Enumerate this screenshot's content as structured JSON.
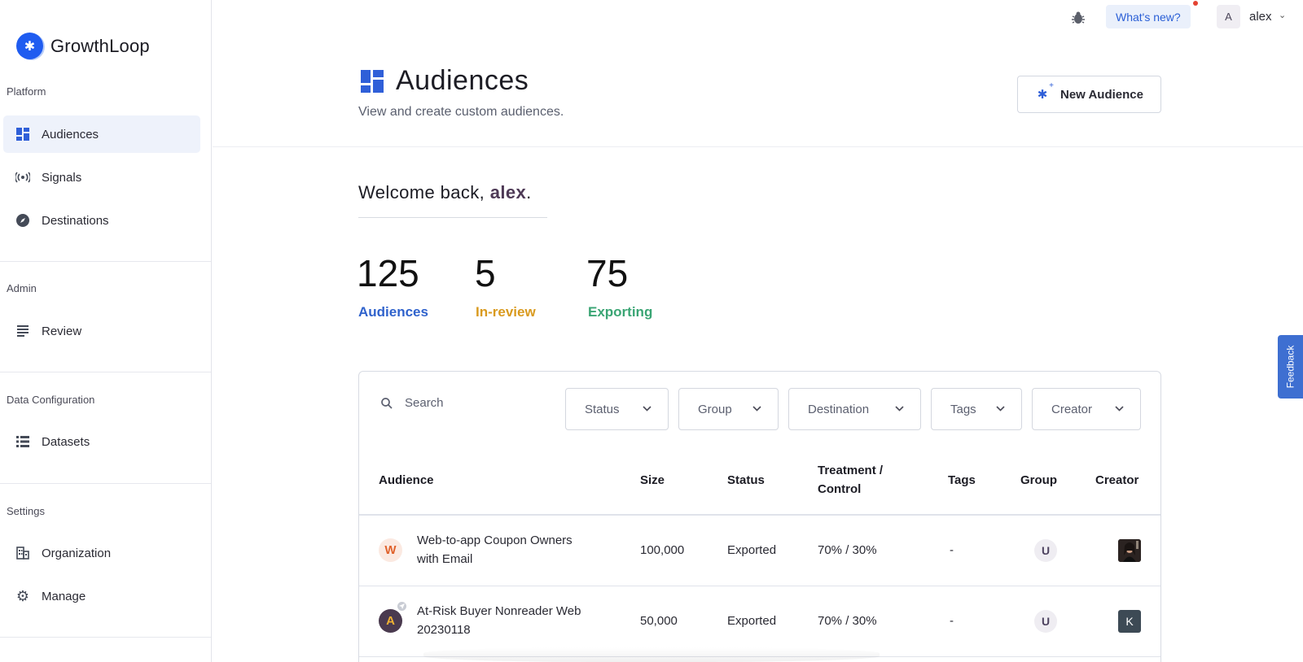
{
  "app": {
    "name": "GrowthLoop"
  },
  "sidebar": {
    "sections": [
      {
        "label": "Platform"
      },
      {
        "label": "Admin"
      },
      {
        "label": "Data Configuration"
      },
      {
        "label": "Settings"
      }
    ],
    "items": [
      {
        "label": "Audiences",
        "icon": "dashboard-icon",
        "active": true
      },
      {
        "label": "Signals",
        "icon": "broadcast-icon"
      },
      {
        "label": "Destinations",
        "icon": "compass-icon"
      },
      {
        "label": "Review",
        "icon": "list-icon"
      },
      {
        "label": "Datasets",
        "icon": "table-list-icon"
      },
      {
        "label": "Organization",
        "icon": "building-icon"
      },
      {
        "label": "Manage",
        "icon": "gear-icon"
      }
    ]
  },
  "topbar": {
    "whats_new": "What's new?",
    "user_initial": "A",
    "user_name": "alex"
  },
  "header": {
    "title": "Audiences",
    "subtitle": "View and create custom audiences.",
    "new_button": "New Audience"
  },
  "welcome": {
    "prefix": "Welcome back,",
    "name": "alex",
    "suffix": "."
  },
  "stats": [
    {
      "value": "125",
      "label": "Audiences",
      "color": "#2f62cc"
    },
    {
      "value": "5",
      "label": "In-review",
      "color": "#d99a1e"
    },
    {
      "value": "75",
      "label": "Exporting",
      "color": "#3aa574"
    }
  ],
  "filters": {
    "search_placeholder": "Search",
    "dropdowns": [
      {
        "label": "Status"
      },
      {
        "label": "Group"
      },
      {
        "label": "Destination"
      },
      {
        "label": "Tags"
      },
      {
        "label": "Creator"
      }
    ]
  },
  "table": {
    "columns": [
      "Audience",
      "Size",
      "Status",
      "Treatment /",
      "Control",
      "Tags",
      "Group",
      "Creator"
    ],
    "rows": [
      {
        "avatar": "W",
        "name_line1": "Web-to-app Coupon Owners",
        "name_line2": "with Email",
        "size": "100,000",
        "status": "Exported",
        "treatment": "70% / 30%",
        "tags": "-",
        "group": "U",
        "creator": ""
      },
      {
        "avatar": "A",
        "name_line1": "At-Risk Buyer Nonreader Web",
        "name_line2": "20230118",
        "size": "50,000",
        "status": "Exported",
        "treatment": "70% / 30%",
        "tags": "-",
        "group": "U",
        "creator": "K"
      }
    ]
  },
  "feedback": "Feedback",
  "colors": {
    "brand": "#1f5cf0",
    "active_bg": "#eef2fb"
  }
}
